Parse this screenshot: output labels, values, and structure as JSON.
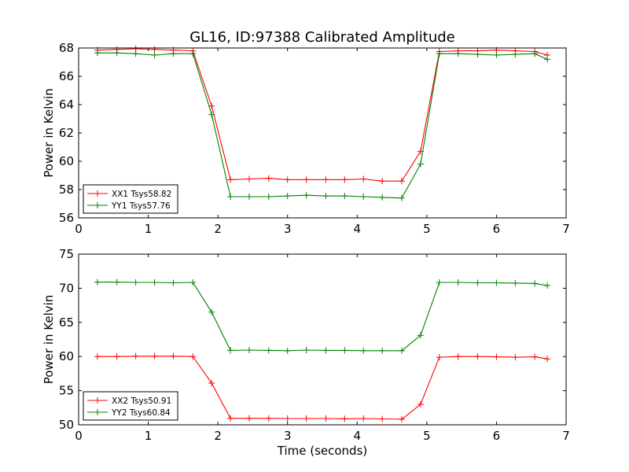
{
  "figure": {
    "title": "GL16, ID:97388 Calibrated Amplitude",
    "xlabel": "Time (seconds)"
  },
  "chart_data": [
    {
      "type": "line",
      "title": "GL16, ID:97388 Calibrated Amplitude",
      "xlabel": "",
      "ylabel": "Power in Kelvin",
      "xlim": [
        0,
        7
      ],
      "ylim": [
        56,
        68
      ],
      "xticks": [
        0,
        1,
        2,
        3,
        4,
        5,
        6,
        7
      ],
      "yticks": [
        56,
        58,
        60,
        62,
        64,
        66,
        68
      ],
      "grid": false,
      "legend_position": "lower-left",
      "x": [
        0.27,
        0.55,
        0.82,
        1.09,
        1.36,
        1.64,
        1.91,
        2.18,
        2.45,
        2.73,
        3.0,
        3.27,
        3.55,
        3.82,
        4.09,
        4.36,
        4.64,
        4.91,
        5.18,
        5.45,
        5.73,
        6.0,
        6.27,
        6.55,
        6.73
      ],
      "series": [
        {
          "name": "XX1 Tsys58.82",
          "color": "#ff0000",
          "values": [
            67.85,
            67.9,
            67.95,
            67.9,
            67.85,
            67.8,
            63.9,
            58.7,
            58.75,
            58.8,
            58.7,
            58.7,
            58.7,
            58.7,
            58.75,
            58.6,
            58.6,
            60.7,
            67.75,
            67.8,
            67.8,
            67.85,
            67.8,
            67.75,
            67.5
          ]
        },
        {
          "name": "YY1 Tsys57.76",
          "color": "#008000",
          "values": [
            67.65,
            67.65,
            67.6,
            67.5,
            67.6,
            67.6,
            63.3,
            57.5,
            57.5,
            57.5,
            57.55,
            57.6,
            57.55,
            57.55,
            57.5,
            57.45,
            57.4,
            59.8,
            67.6,
            67.6,
            67.55,
            67.5,
            67.55,
            67.6,
            67.2
          ]
        }
      ]
    },
    {
      "type": "line",
      "title": "",
      "xlabel": "Time (seconds)",
      "ylabel": "Power in Kelvin",
      "xlim": [
        0,
        7
      ],
      "ylim": [
        50,
        75
      ],
      "xticks": [
        0,
        1,
        2,
        3,
        4,
        5,
        6,
        7
      ],
      "yticks": [
        50,
        55,
        60,
        65,
        70,
        75
      ],
      "grid": false,
      "legend_position": "lower-left",
      "x": [
        0.27,
        0.55,
        0.82,
        1.09,
        1.36,
        1.64,
        1.91,
        2.18,
        2.45,
        2.73,
        3.0,
        3.27,
        3.55,
        3.82,
        4.09,
        4.36,
        4.64,
        4.91,
        5.18,
        5.45,
        5.73,
        6.0,
        6.27,
        6.55,
        6.73
      ],
      "series": [
        {
          "name": "XX2 Tsys50.91",
          "color": "#ff0000",
          "values": [
            60.0,
            60.0,
            60.05,
            60.05,
            60.05,
            60.0,
            56.1,
            50.95,
            50.95,
            50.95,
            50.92,
            50.92,
            50.92,
            50.88,
            50.92,
            50.86,
            50.82,
            53.0,
            59.9,
            60.0,
            60.0,
            59.95,
            59.9,
            59.95,
            59.65
          ]
        },
        {
          "name": "YY2 Tsys60.84",
          "color": "#008000",
          "values": [
            70.9,
            70.9,
            70.85,
            70.85,
            70.8,
            70.85,
            66.5,
            60.9,
            60.95,
            60.9,
            60.85,
            60.95,
            60.9,
            60.9,
            60.85,
            60.85,
            60.85,
            63.1,
            70.85,
            70.85,
            70.8,
            70.8,
            70.75,
            70.7,
            70.4
          ]
        }
      ]
    }
  ]
}
